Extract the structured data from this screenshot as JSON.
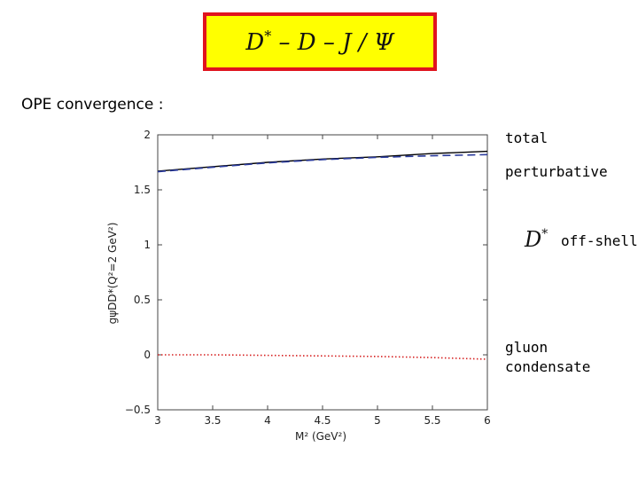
{
  "header": {
    "title_main": "D",
    "title_sup": "*",
    "title_rest": " – D – J / Ψ",
    "box_fill": "#ffff00",
    "box_border": "#e0141e"
  },
  "subheading": "OPE convergence :",
  "legend": {
    "total": "total",
    "perturbative": "perturbative",
    "dstar_symbol": "D",
    "dstar_sup": "*",
    "offshell": "off-shell",
    "gluon": "gluon",
    "condensate": "condensate"
  },
  "chart_data": {
    "type": "line",
    "xlabel": "M² (GeV²)",
    "ylabel": "gψDD*(Q²=2 GeV²)",
    "xlim": [
      3,
      6
    ],
    "ylim": [
      -0.5,
      2
    ],
    "x_ticks": [
      "3",
      "3.5",
      "4",
      "4.5",
      "5",
      "5.5",
      "6"
    ],
    "y_ticks": [
      "−0.5",
      "0",
      "0.5",
      "1",
      "1.5",
      "2"
    ],
    "grid": false,
    "series": [
      {
        "label_key": "total",
        "color": "#000000",
        "style": "solid",
        "x": [
          3.0,
          3.5,
          4.0,
          4.5,
          5.0,
          5.5,
          6.0
        ],
        "y": [
          1.67,
          1.71,
          1.75,
          1.78,
          1.8,
          1.83,
          1.85
        ]
      },
      {
        "label_key": "perturbative",
        "color": "#2a3a9c",
        "style": "dashed",
        "x": [
          3.0,
          3.5,
          4.0,
          4.5,
          5.0,
          5.5,
          6.0
        ],
        "y": [
          1.665,
          1.705,
          1.745,
          1.775,
          1.795,
          1.81,
          1.82
        ]
      },
      {
        "label_key": "gluon condensate",
        "color": "#d62020",
        "style": "dotted",
        "x": [
          3.0,
          3.5,
          4.0,
          4.5,
          5.0,
          5.5,
          6.0
        ],
        "y": [
          0.0,
          0.0,
          -0.005,
          -0.01,
          -0.015,
          -0.025,
          -0.04
        ]
      }
    ]
  }
}
